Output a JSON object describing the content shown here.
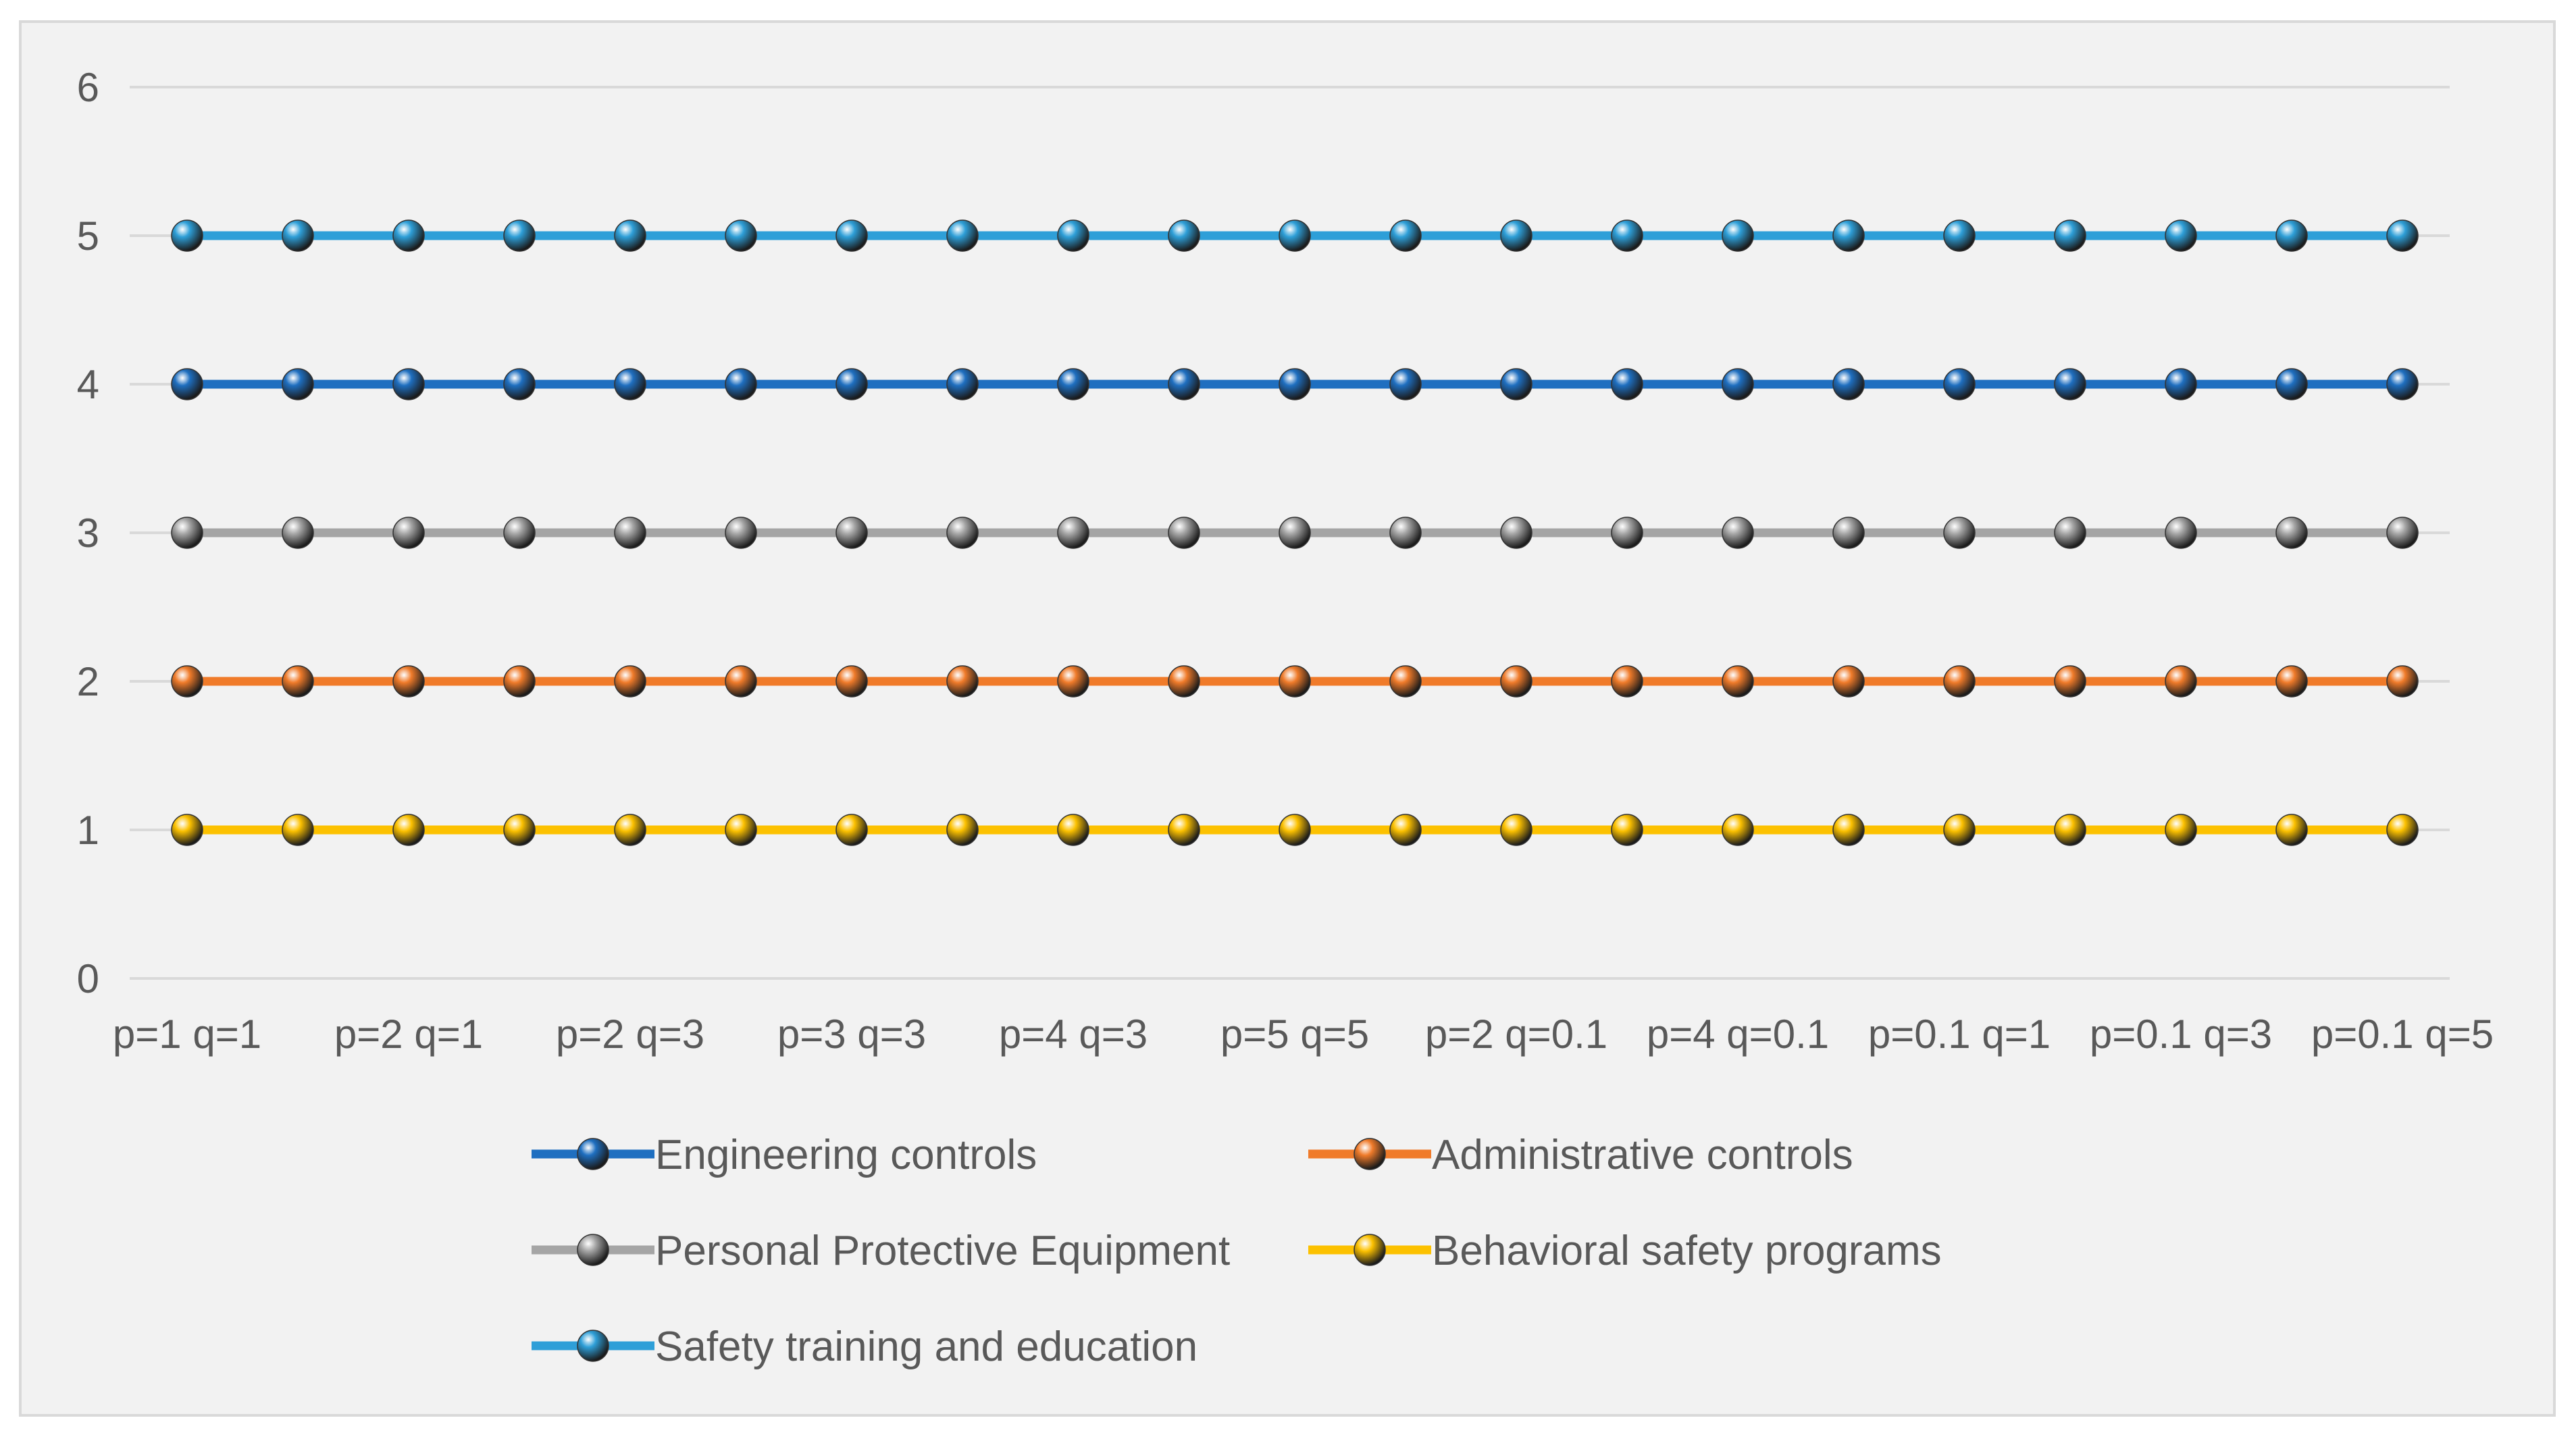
{
  "chart_data": {
    "type": "line",
    "title": "",
    "xlabel": "",
    "ylabel": "",
    "ylim": [
      0,
      6
    ],
    "yticks": [
      0,
      1,
      2,
      3,
      4,
      5,
      6
    ],
    "grid": true,
    "legend_position": "bottom",
    "x_tick_labels": [
      "p=1 q=1",
      "p=2 q=1",
      "p=2 q=3",
      "p=3 q=3",
      "p=4 q=3",
      "p=5 q=5",
      "p=2 q=0.1",
      "p=4 q=0.1",
      "p=0.1 q=1",
      "p=0.1 q=3",
      "p=0.1 q=5"
    ],
    "point_count": 21,
    "series": [
      {
        "name": "Engineering controls",
        "color": "#1f6fc0",
        "values": [
          4,
          4,
          4,
          4,
          4,
          4,
          4,
          4,
          4,
          4,
          4,
          4,
          4,
          4,
          4,
          4,
          4,
          4,
          4,
          4,
          4
        ]
      },
      {
        "name": "Administrative controls",
        "color": "#f07b2a",
        "values": [
          2,
          2,
          2,
          2,
          2,
          2,
          2,
          2,
          2,
          2,
          2,
          2,
          2,
          2,
          2,
          2,
          2,
          2,
          2,
          2,
          2
        ]
      },
      {
        "name": "Personal Protective Equipment",
        "color": "#a5a5a5",
        "values": [
          3,
          3,
          3,
          3,
          3,
          3,
          3,
          3,
          3,
          3,
          3,
          3,
          3,
          3,
          3,
          3,
          3,
          3,
          3,
          3,
          3
        ]
      },
      {
        "name": "Behavioral safety programs",
        "color": "#fcc100",
        "values": [
          1,
          1,
          1,
          1,
          1,
          1,
          1,
          1,
          1,
          1,
          1,
          1,
          1,
          1,
          1,
          1,
          1,
          1,
          1,
          1,
          1
        ]
      },
      {
        "name": "Safety training and education",
        "color": "#2e9fd8",
        "values": [
          5,
          5,
          5,
          5,
          5,
          5,
          5,
          5,
          5,
          5,
          5,
          5,
          5,
          5,
          5,
          5,
          5,
          5,
          5,
          5,
          5
        ]
      }
    ]
  }
}
